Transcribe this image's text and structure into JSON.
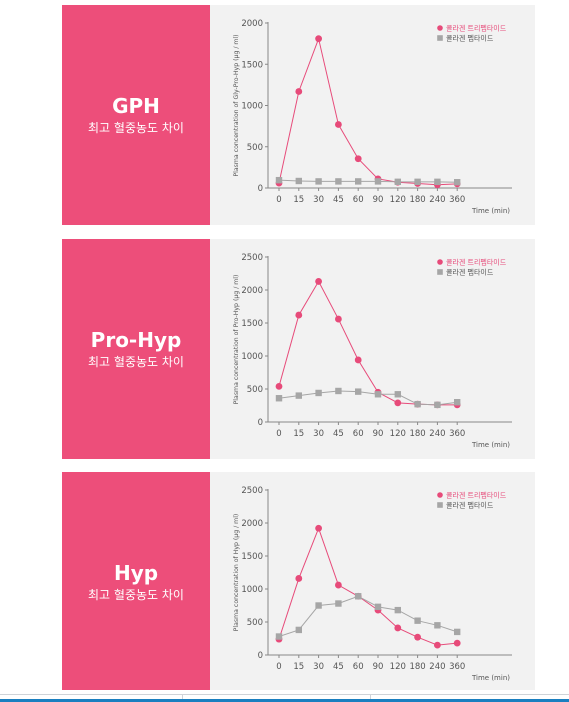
{
  "panels": [
    {
      "title": "GPH",
      "subtitle": "최고 혈중농도 차이",
      "chart_ref": 0
    },
    {
      "title": "Pro-Hyp",
      "subtitle": "최고 혈중농도 차이",
      "chart_ref": 1
    },
    {
      "title": "Hyp",
      "subtitle": "최고 혈중농도 차이",
      "chart_ref": 2
    }
  ],
  "colors": {
    "panel_pink": "#ed4e7a",
    "series_pink": "#e74b7a",
    "series_gray": "#a6a6a6",
    "chart_bg": "#f2f2f2"
  },
  "chart_data": [
    {
      "type": "line",
      "ylabel": "Plasma concentration of Gly-Pro-Hyp (μg / ml)",
      "xlabel": "Time (min)",
      "categories": [
        "0",
        "15",
        "30",
        "45",
        "60",
        "90",
        "120",
        "180",
        "240",
        "360"
      ],
      "ylim": [
        0,
        2000
      ],
      "yticks": [
        0,
        500,
        1000,
        1500,
        2000
      ],
      "legend_position": "top-right",
      "grid": false,
      "series": [
        {
          "name": "콜라겐 트리펩타이드",
          "marker": "circle",
          "values": [
            60,
            1170,
            1810,
            770,
            355,
            110,
            70,
            55,
            40,
            50
          ]
        },
        {
          "name": "콜라겐 펩타이드",
          "marker": "square",
          "values": [
            95,
            85,
            80,
            80,
            80,
            80,
            75,
            75,
            75,
            70
          ]
        }
      ]
    },
    {
      "type": "line",
      "ylabel": "Plasma concentration of Pro-Hyp (μg / ml)",
      "xlabel": "Time (min)",
      "categories": [
        "0",
        "15",
        "30",
        "45",
        "60",
        "90",
        "120",
        "180",
        "240",
        "360"
      ],
      "ylim": [
        0,
        2500
      ],
      "yticks": [
        0,
        500,
        1000,
        1500,
        2000,
        2500
      ],
      "legend_position": "top-right",
      "grid": false,
      "series": [
        {
          "name": "콜라겐 트리펩타이드",
          "marker": "circle",
          "values": [
            540,
            1620,
            2130,
            1560,
            940,
            450,
            290,
            270,
            260,
            260
          ]
        },
        {
          "name": "콜라겐 펩타이드",
          "marker": "square",
          "values": [
            360,
            400,
            440,
            470,
            460,
            420,
            420,
            270,
            260,
            300
          ]
        }
      ]
    },
    {
      "type": "line",
      "ylabel": "Plasma concentration of Hyp (μg / ml)",
      "xlabel": "Time (min)",
      "categories": [
        "0",
        "15",
        "30",
        "45",
        "60",
        "90",
        "120",
        "180",
        "240",
        "360"
      ],
      "ylim": [
        0,
        2500
      ],
      "yticks": [
        0,
        500,
        1000,
        1500,
        2000,
        2500
      ],
      "legend_position": "top-right",
      "grid": false,
      "series": [
        {
          "name": "콜라겐 트리펩타이드",
          "marker": "circle",
          "values": [
            240,
            1160,
            1920,
            1060,
            890,
            680,
            410,
            270,
            150,
            180
          ]
        },
        {
          "name": "콜라겐 펩타이드",
          "marker": "square",
          "values": [
            280,
            380,
            750,
            780,
            890,
            730,
            680,
            520,
            450,
            350
          ]
        }
      ]
    }
  ]
}
